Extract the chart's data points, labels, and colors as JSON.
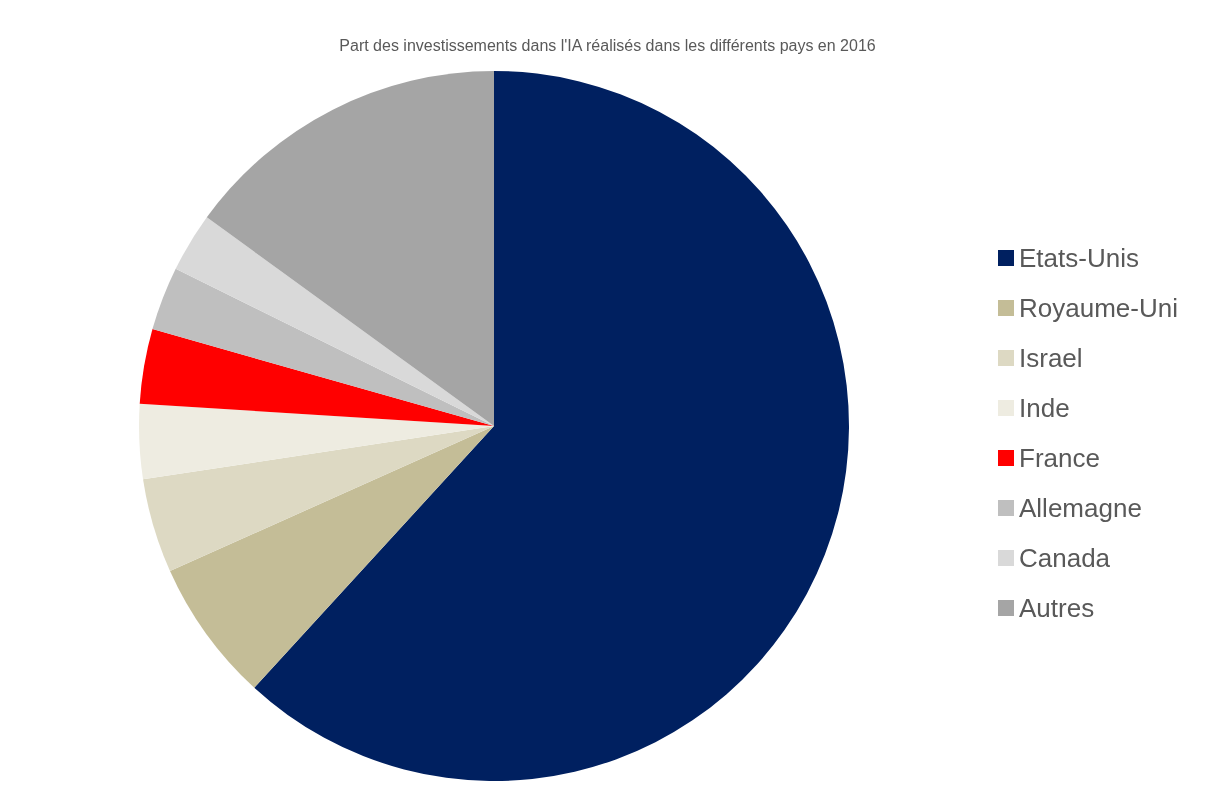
{
  "chart_data": {
    "type": "pie",
    "title": "Part des investissements dans l'IA réalisés dans les différents pays en 2016",
    "categories": [
      "Etats-Unis",
      "Royaume-Uni",
      "Israel",
      "Inde",
      "France",
      "Allemagne",
      "Canada",
      "Autres"
    ],
    "values": [
      61.8,
      6.5,
      4.3,
      3.4,
      3.4,
      2.9,
      2.7,
      15.0
    ],
    "colors": [
      "#002060",
      "#c4bd97",
      "#ddd9c3",
      "#eeece1",
      "#ff0000",
      "#bfbfbf",
      "#d9d9d9",
      "#a5a5a5"
    ],
    "legend": "right"
  }
}
